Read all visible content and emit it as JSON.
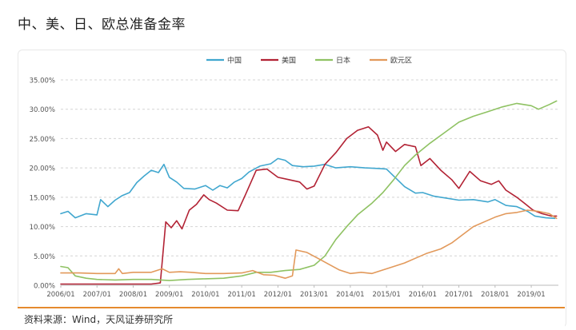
{
  "page_title": "中、美、日、欧总准备金率",
  "source": "资料来源：Wind，天风证券研究所",
  "chart_data": {
    "type": "line",
    "title": "",
    "xlabel": "",
    "ylabel": "",
    "ylim": [
      0,
      35
    ],
    "y_ticks": [
      "0.00%",
      "5.00%",
      "10.00%",
      "15.00%",
      "20.00%",
      "25.00%",
      "30.00%",
      "35.00%"
    ],
    "x_ticks": [
      "2006/01",
      "2007/01",
      "2008/01",
      "2009/01",
      "2010/01",
      "2011/01",
      "2012/01",
      "2013/01",
      "2014/01",
      "2015/01",
      "2016/01",
      "2017/01",
      "2018/01",
      "2019/01"
    ],
    "x_range": [
      2006.0,
      2019.75
    ],
    "grid": true,
    "legend_position": "top",
    "series": [
      {
        "name": "中国",
        "color": "#41a7cf",
        "points": [
          [
            2006.0,
            12.2
          ],
          [
            2006.2,
            12.6
          ],
          [
            2006.4,
            11.5
          ],
          [
            2006.7,
            12.2
          ],
          [
            2007.0,
            12.0
          ],
          [
            2007.1,
            14.6
          ],
          [
            2007.3,
            13.4
          ],
          [
            2007.5,
            14.5
          ],
          [
            2007.7,
            15.3
          ],
          [
            2007.9,
            15.8
          ],
          [
            2008.1,
            17.5
          ],
          [
            2008.3,
            18.6
          ],
          [
            2008.5,
            19.6
          ],
          [
            2008.7,
            19.2
          ],
          [
            2008.85,
            20.6
          ],
          [
            2009.0,
            18.4
          ],
          [
            2009.2,
            17.6
          ],
          [
            2009.4,
            16.5
          ],
          [
            2009.7,
            16.4
          ],
          [
            2010.0,
            17.0
          ],
          [
            2010.2,
            16.2
          ],
          [
            2010.4,
            17.0
          ],
          [
            2010.6,
            16.6
          ],
          [
            2010.8,
            17.6
          ],
          [
            2011.0,
            18.2
          ],
          [
            2011.2,
            19.3
          ],
          [
            2011.5,
            20.3
          ],
          [
            2011.8,
            20.7
          ],
          [
            2012.0,
            21.6
          ],
          [
            2012.2,
            21.3
          ],
          [
            2012.4,
            20.4
          ],
          [
            2012.7,
            20.2
          ],
          [
            2013.0,
            20.3
          ],
          [
            2013.3,
            20.6
          ],
          [
            2013.6,
            20.0
          ],
          [
            2014.0,
            20.2
          ],
          [
            2014.4,
            20.0
          ],
          [
            2014.8,
            19.9
          ],
          [
            2015.0,
            19.8
          ],
          [
            2015.2,
            18.6
          ],
          [
            2015.5,
            16.8
          ],
          [
            2015.8,
            15.7
          ],
          [
            2016.0,
            15.8
          ],
          [
            2016.3,
            15.2
          ],
          [
            2016.7,
            14.8
          ],
          [
            2017.0,
            14.5
          ],
          [
            2017.4,
            14.6
          ],
          [
            2017.8,
            14.2
          ],
          [
            2018.0,
            14.6
          ],
          [
            2018.3,
            13.6
          ],
          [
            2018.6,
            13.4
          ],
          [
            2018.9,
            12.6
          ],
          [
            2019.1,
            11.8
          ],
          [
            2019.4,
            11.5
          ],
          [
            2019.65,
            11.4
          ]
        ]
      },
      {
        "name": "美国",
        "color": "#b22234",
        "points": [
          [
            2006.0,
            0.2
          ],
          [
            2008.5,
            0.2
          ],
          [
            2008.75,
            0.4
          ],
          [
            2008.9,
            10.8
          ],
          [
            2009.05,
            9.8
          ],
          [
            2009.2,
            11.0
          ],
          [
            2009.35,
            9.6
          ],
          [
            2009.55,
            12.8
          ],
          [
            2009.75,
            13.8
          ],
          [
            2009.95,
            15.4
          ],
          [
            2010.1,
            14.6
          ],
          [
            2010.3,
            14.0
          ],
          [
            2010.6,
            12.8
          ],
          [
            2010.9,
            12.7
          ],
          [
            2011.1,
            15.4
          ],
          [
            2011.4,
            19.6
          ],
          [
            2011.7,
            19.8
          ],
          [
            2012.0,
            18.4
          ],
          [
            2012.3,
            18.0
          ],
          [
            2012.6,
            17.6
          ],
          [
            2012.8,
            16.4
          ],
          [
            2013.0,
            16.9
          ],
          [
            2013.3,
            20.6
          ],
          [
            2013.6,
            22.6
          ],
          [
            2013.9,
            25.0
          ],
          [
            2014.2,
            26.4
          ],
          [
            2014.5,
            27.0
          ],
          [
            2014.75,
            25.6
          ],
          [
            2014.9,
            23.0
          ],
          [
            2015.0,
            24.4
          ],
          [
            2015.25,
            22.8
          ],
          [
            2015.5,
            24.0
          ],
          [
            2015.8,
            23.6
          ],
          [
            2015.95,
            20.4
          ],
          [
            2016.2,
            21.6
          ],
          [
            2016.5,
            19.6
          ],
          [
            2016.8,
            18.0
          ],
          [
            2017.0,
            16.5
          ],
          [
            2017.3,
            19.4
          ],
          [
            2017.6,
            17.8
          ],
          [
            2017.9,
            17.2
          ],
          [
            2018.1,
            17.8
          ],
          [
            2018.3,
            16.2
          ],
          [
            2018.6,
            15.0
          ],
          [
            2018.85,
            13.8
          ],
          [
            2019.05,
            12.8
          ],
          [
            2019.3,
            12.2
          ],
          [
            2019.55,
            11.8
          ],
          [
            2019.7,
            11.8
          ]
        ]
      },
      {
        "name": "日本",
        "color": "#8fc263",
        "points": [
          [
            2006.0,
            3.2
          ],
          [
            2006.2,
            3.0
          ],
          [
            2006.4,
            1.6
          ],
          [
            2006.7,
            1.2
          ],
          [
            2007.0,
            1.0
          ],
          [
            2007.5,
            0.9
          ],
          [
            2008.0,
            1.0
          ],
          [
            2008.5,
            1.0
          ],
          [
            2009.0,
            0.8
          ],
          [
            2009.5,
            1.0
          ],
          [
            2010.0,
            1.1
          ],
          [
            2010.5,
            1.2
          ],
          [
            2011.0,
            1.6
          ],
          [
            2011.4,
            2.2
          ],
          [
            2011.8,
            2.2
          ],
          [
            2012.2,
            2.5
          ],
          [
            2012.6,
            2.7
          ],
          [
            2013.0,
            3.4
          ],
          [
            2013.3,
            5.0
          ],
          [
            2013.6,
            7.8
          ],
          [
            2013.9,
            10.0
          ],
          [
            2014.2,
            12.0
          ],
          [
            2014.6,
            14.0
          ],
          [
            2014.9,
            15.8
          ],
          [
            2015.2,
            18.0
          ],
          [
            2015.5,
            20.4
          ],
          [
            2015.8,
            22.2
          ],
          [
            2016.2,
            24.2
          ],
          [
            2016.6,
            26.0
          ],
          [
            2017.0,
            27.8
          ],
          [
            2017.4,
            28.8
          ],
          [
            2017.8,
            29.6
          ],
          [
            2018.2,
            30.4
          ],
          [
            2018.6,
            31.0
          ],
          [
            2019.0,
            30.6
          ],
          [
            2019.2,
            30.0
          ],
          [
            2019.5,
            30.8
          ],
          [
            2019.7,
            31.4
          ]
        ]
      },
      {
        "name": "欧元区",
        "color": "#e2995b",
        "points": [
          [
            2006.0,
            2.1
          ],
          [
            2006.5,
            2.1
          ],
          [
            2007.0,
            2.0
          ],
          [
            2007.5,
            2.0
          ],
          [
            2007.6,
            2.8
          ],
          [
            2007.7,
            2.0
          ],
          [
            2008.0,
            2.2
          ],
          [
            2008.5,
            2.2
          ],
          [
            2008.8,
            2.8
          ],
          [
            2009.0,
            2.2
          ],
          [
            2009.3,
            2.3
          ],
          [
            2009.6,
            2.2
          ],
          [
            2010.0,
            2.0
          ],
          [
            2010.5,
            2.0
          ],
          [
            2011.0,
            2.1
          ],
          [
            2011.3,
            2.5
          ],
          [
            2011.6,
            1.8
          ],
          [
            2011.9,
            1.7
          ],
          [
            2012.2,
            1.2
          ],
          [
            2012.4,
            1.6
          ],
          [
            2012.5,
            6.0
          ],
          [
            2012.8,
            5.6
          ],
          [
            2013.1,
            4.6
          ],
          [
            2013.4,
            3.6
          ],
          [
            2013.7,
            2.6
          ],
          [
            2014.0,
            2.0
          ],
          [
            2014.3,
            2.2
          ],
          [
            2014.6,
            2.0
          ],
          [
            2014.9,
            2.6
          ],
          [
            2015.2,
            3.2
          ],
          [
            2015.5,
            3.8
          ],
          [
            2015.8,
            4.6
          ],
          [
            2016.1,
            5.4
          ],
          [
            2016.5,
            6.2
          ],
          [
            2016.8,
            7.2
          ],
          [
            2017.1,
            8.6
          ],
          [
            2017.4,
            10.0
          ],
          [
            2017.7,
            10.8
          ],
          [
            2018.0,
            11.6
          ],
          [
            2018.3,
            12.2
          ],
          [
            2018.6,
            12.4
          ],
          [
            2018.9,
            12.8
          ],
          [
            2019.2,
            12.6
          ],
          [
            2019.5,
            12.2
          ],
          [
            2019.7,
            11.4
          ]
        ]
      }
    ]
  }
}
